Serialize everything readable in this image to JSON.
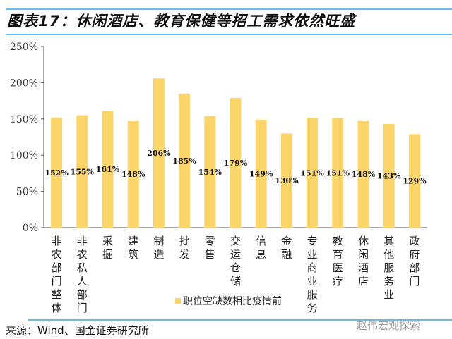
{
  "title": "图表17：休闲酒店、教育保健等招工需求依然旺盛",
  "source": "来源：Wind、国金证券研究所",
  "watermark": "赵伟宏观探索",
  "colors": {
    "bar": "#fcd56a",
    "rule": "#62bdf0"
  },
  "chart_data": {
    "type": "bar",
    "categories": [
      "非农部门整体",
      "非农私人部门",
      "采掘",
      "建筑",
      "制造",
      "批发",
      "零售",
      "交运仓储",
      "信息",
      "金融",
      "专业商业服务",
      "教育医疗",
      "休闲酒店",
      "其他服务业",
      "政府部门"
    ],
    "values": [
      152,
      155,
      161,
      148,
      206,
      185,
      154,
      179,
      149,
      130,
      151,
      151,
      148,
      143,
      129
    ],
    "data_labels": [
      "152%",
      "155%",
      "161%",
      "148%",
      "206%",
      "185%",
      "154%",
      "179%",
      "149%",
      "130%",
      "151%",
      "151%",
      "148%",
      "143%",
      "129%"
    ],
    "series_name": "职位空缺数相比疫情前",
    "ylim": [
      0,
      250
    ],
    "yticks": [
      "0%",
      "50%",
      "100%",
      "150%",
      "200%",
      "250%"
    ],
    "ytick_values": [
      0,
      50,
      100,
      150,
      200,
      250
    ],
    "legend": "bottom-center",
    "grid": false
  }
}
